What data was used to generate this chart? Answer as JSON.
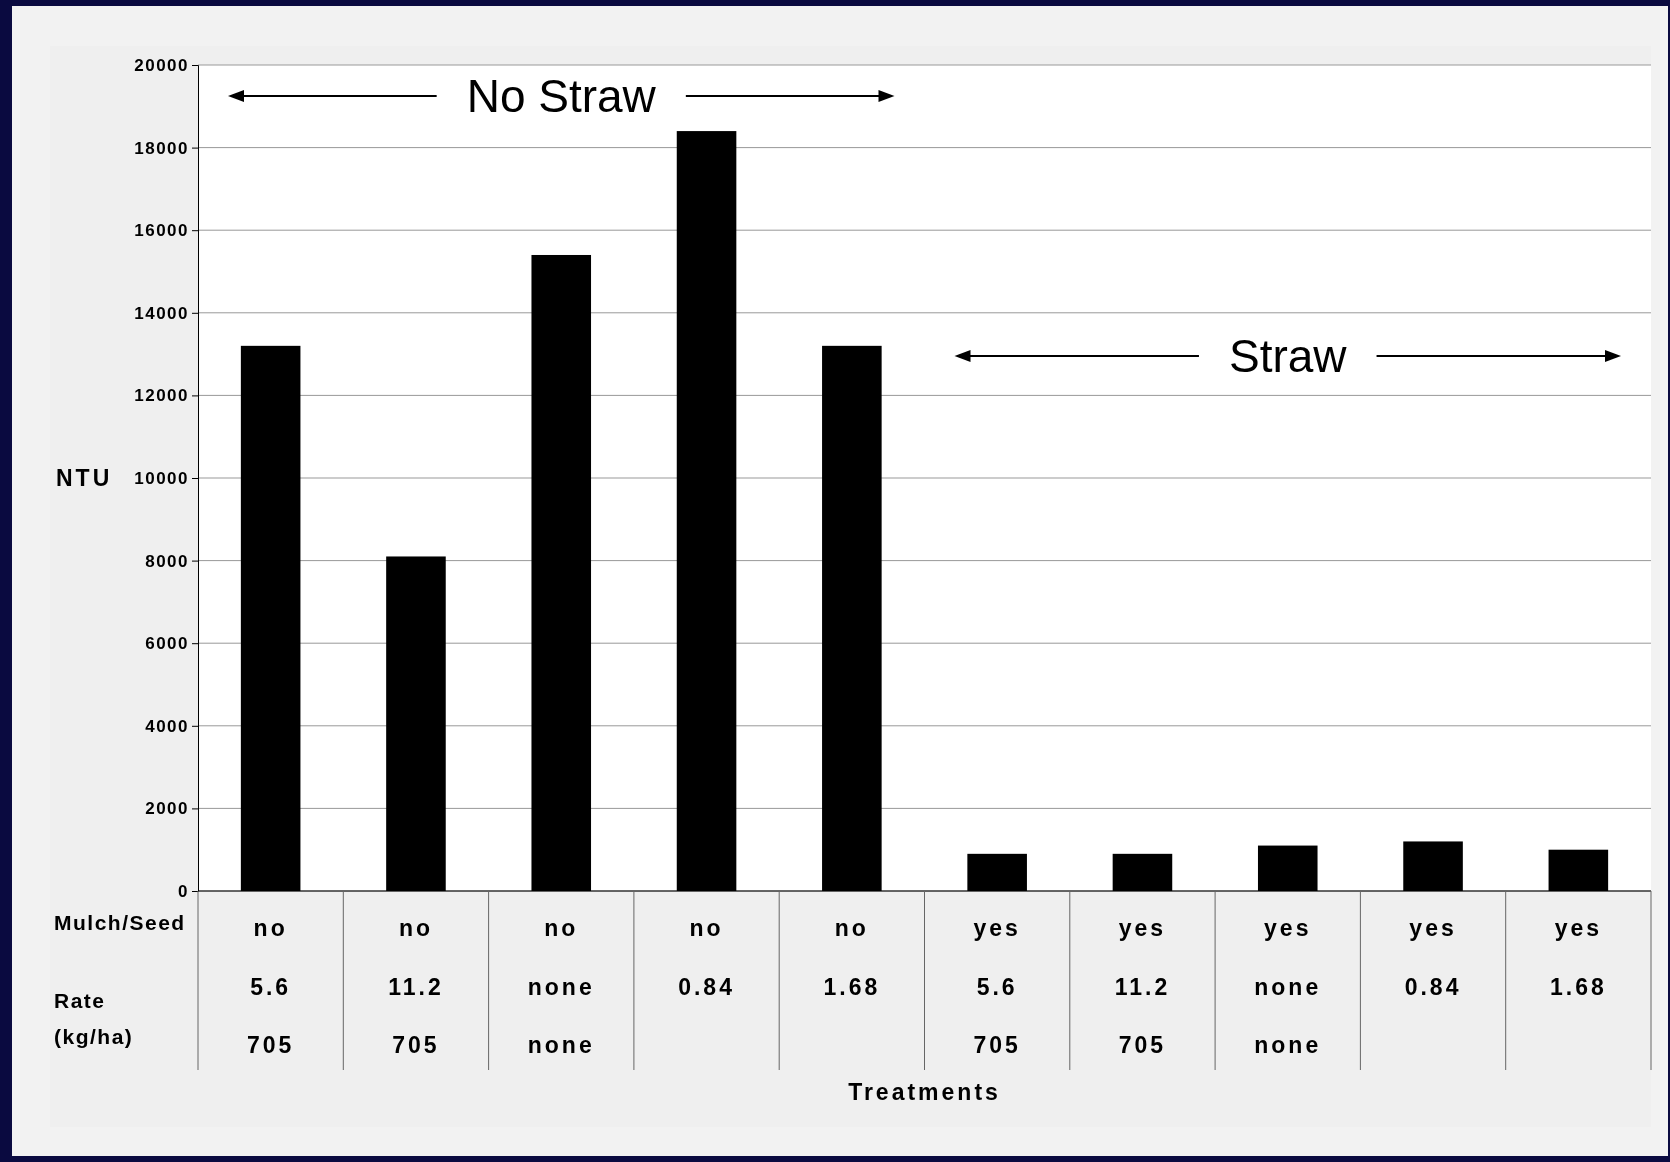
{
  "chart_data": {
    "type": "bar",
    "ylabel": "NTU",
    "categories": [
      "no\n5.6\n705",
      "no\n11.2\n705",
      "no\nnone\nnone",
      "no\n0.84",
      "no\n1.68",
      "yes\n5.6\n705",
      "yes\n11.2\n705",
      "yes\nnone\nnone",
      "yes\n0.84",
      "yes\n1.68"
    ],
    "values": [
      13200,
      8100,
      15400,
      18400,
      13200,
      900,
      900,
      1100,
      1200,
      1000
    ],
    "color": "#000000",
    "ylim": [
      0,
      20000
    ],
    "yticks": [
      0,
      2000,
      4000,
      6000,
      8000,
      10000,
      12000,
      14000,
      16000,
      18000,
      20000
    ],
    "grid": "y",
    "annotations": [
      "No Straw",
      "Straw",
      "Mulch/Seed",
      "Rate\n(kg/ha)",
      "Treatments"
    ]
  }
}
